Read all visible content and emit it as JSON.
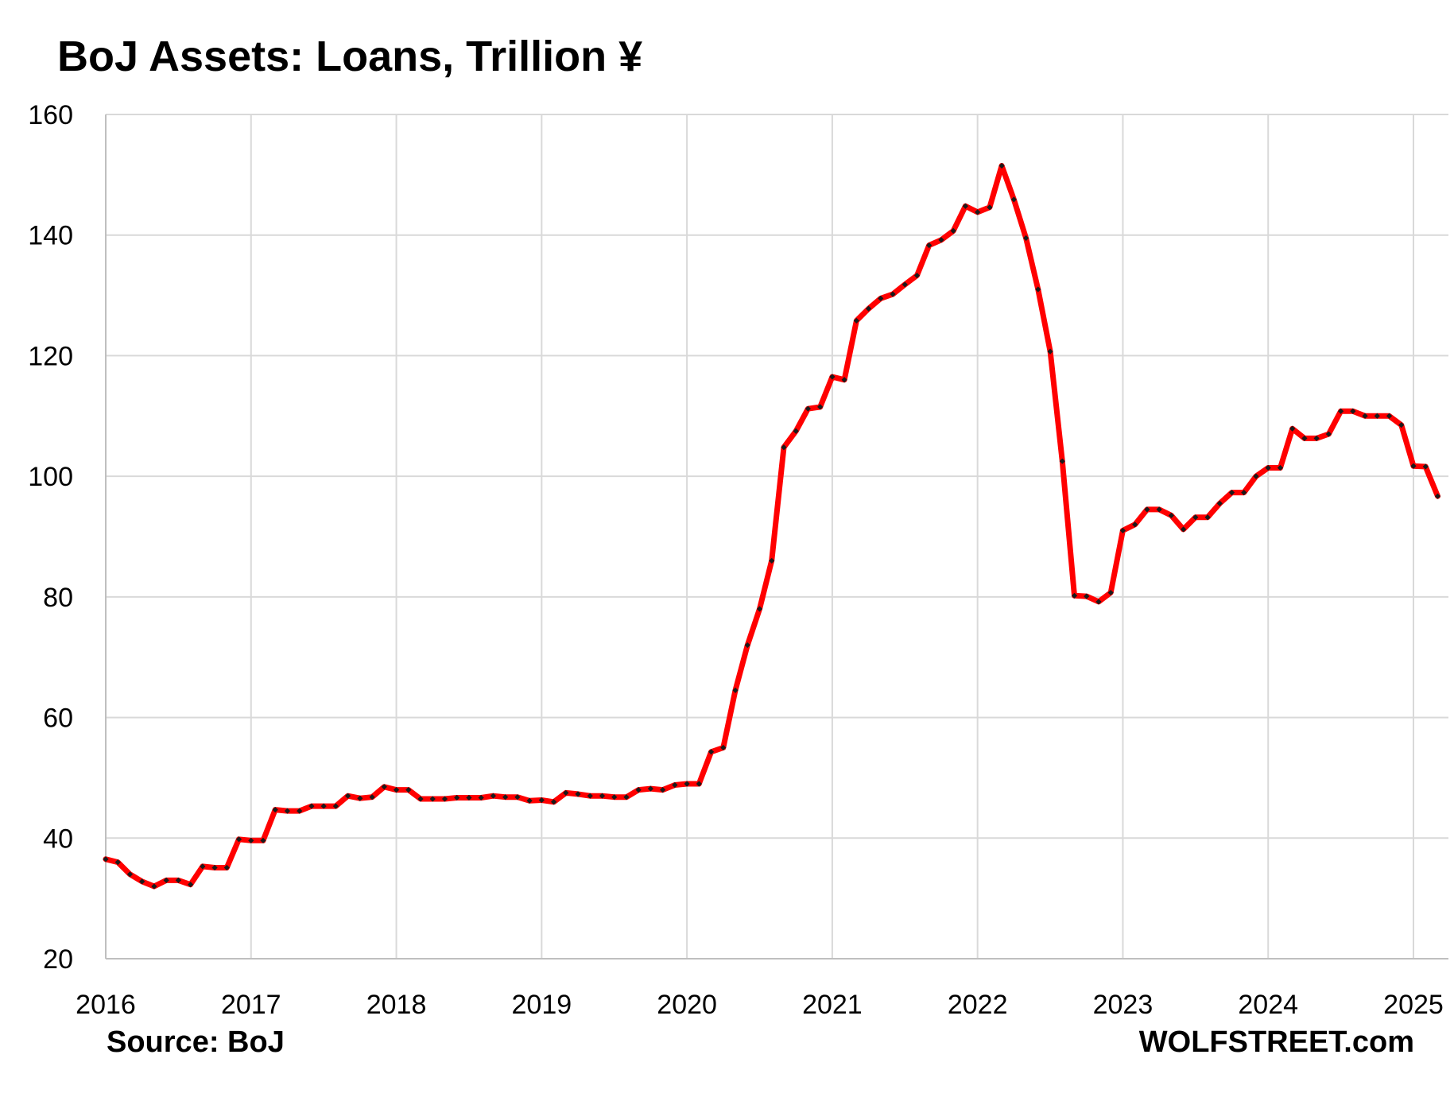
{
  "chart_data": {
    "type": "line",
    "title": "BoJ Assets: Loans, Trillion ¥",
    "source": "Source: BoJ",
    "brand": "WOLFSTREET.com",
    "xlabel": "",
    "ylabel": "",
    "ylim": [
      20,
      160
    ],
    "xlim": [
      2016,
      2025.25
    ],
    "yticks": [
      "20",
      "40",
      "60",
      "80",
      "100",
      "120",
      "140",
      "160"
    ],
    "xticks": [
      "2016",
      "2017",
      "2018",
      "2019",
      "2020",
      "2021",
      "2022",
      "2023",
      "2024",
      "2025"
    ],
    "grid": true,
    "legend": "none",
    "colors": {
      "line": "#ff0000",
      "marker": "#1a1a1a",
      "grid": "#d9d9d9"
    },
    "series": [
      {
        "name": "",
        "start": "2016-01",
        "frequency": "monthly",
        "values": [
          36.5,
          36.0,
          34.0,
          32.8,
          32.0,
          33.0,
          33.0,
          32.3,
          35.3,
          35.1,
          35.1,
          39.8,
          39.6,
          39.6,
          44.7,
          44.5,
          44.5,
          45.3,
          45.3,
          45.3,
          47.0,
          46.6,
          46.8,
          48.5,
          48.0,
          48.0,
          46.5,
          46.5,
          46.5,
          46.7,
          46.7,
          46.7,
          47.0,
          46.8,
          46.8,
          46.2,
          46.3,
          46.0,
          47.5,
          47.3,
          47.0,
          47.0,
          46.8,
          46.8,
          48.0,
          48.2,
          48.0,
          48.8,
          49.0,
          49.0,
          54.3,
          55.0,
          64.5,
          72.0,
          78.0,
          86.0,
          104.8,
          107.5,
          111.2,
          111.5,
          116.5,
          116.0,
          125.8,
          127.8,
          129.5,
          130.2,
          131.8,
          133.3,
          138.3,
          139.2,
          140.7,
          144.8,
          143.8,
          144.6,
          151.5,
          145.9,
          139.5,
          131.0,
          120.7,
          102.5,
          80.2,
          80.1,
          79.2,
          80.7,
          91.0,
          92.0,
          94.5,
          94.5,
          93.5,
          91.2,
          93.2,
          93.2,
          95.5,
          97.3,
          97.3,
          100.0,
          101.4,
          101.4,
          107.9,
          106.3,
          106.3,
          107.0,
          110.8,
          110.8,
          110.0,
          110.0,
          110.0,
          108.5,
          101.7,
          101.6,
          96.7
        ]
      }
    ]
  }
}
